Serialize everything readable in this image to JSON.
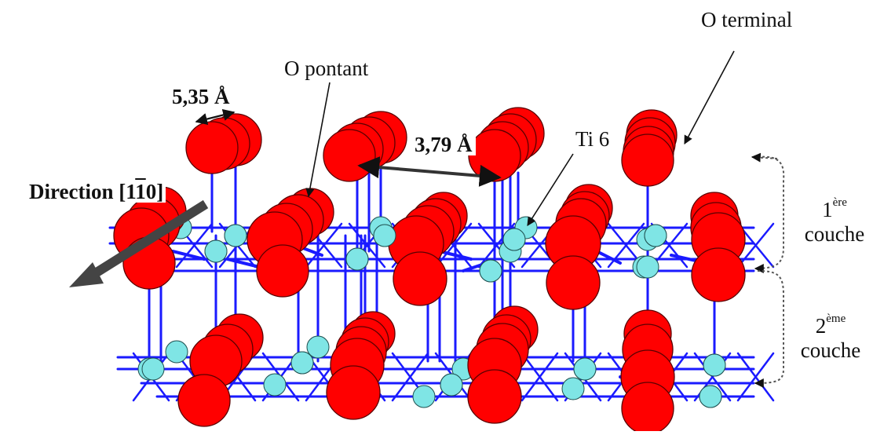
{
  "labels": {
    "o_terminal": "O terminal",
    "o_pontant": "O pontant",
    "distance_a": "5,35 Å",
    "distance_b": "3,79 Å",
    "ti6": "Ti 6",
    "direction_prefix": "Direction [1",
    "direction_digit": "1",
    "direction_suffix": "0]",
    "layer1_num": "1",
    "layer1_sup": "ère",
    "layer1_word": "couche",
    "layer2_num": "2",
    "layer2_sup": "ème",
    "layer2_word": "couche"
  },
  "colors": {
    "oxygen": "#ff0000",
    "titanium": "#7fe5e5",
    "bond": "#1a1aff",
    "arrow": "#444444",
    "text": "#111111"
  }
}
